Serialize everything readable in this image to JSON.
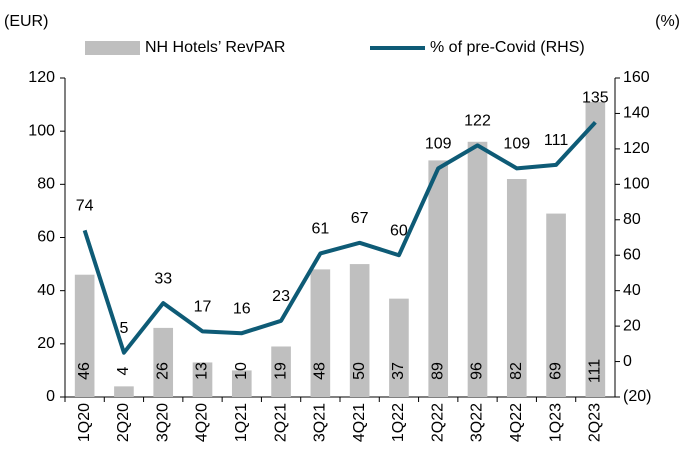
{
  "chart_data": {
    "type": "bar_line",
    "y_label": "(EUR)",
    "y2_label": "(%)",
    "categories": [
      "1Q20",
      "2Q20",
      "3Q20",
      "4Q20",
      "1Q21",
      "2Q21",
      "3Q21",
      "4Q21",
      "1Q22",
      "2Q22",
      "3Q22",
      "4Q22",
      "1Q23",
      "2Q23"
    ],
    "series": [
      {
        "name": "NH Hotels’ RevPAR",
        "type": "bar",
        "color": "#bfbfbf",
        "values": [
          46,
          4,
          26,
          13,
          10,
          19,
          48,
          50,
          37,
          89,
          96,
          82,
          69,
          111
        ]
      },
      {
        "name": "% of pre-Covid (RHS)",
        "type": "line",
        "color": "#0e5b76",
        "axis": "y2",
        "values": [
          74,
          5,
          33,
          17,
          16,
          23,
          61,
          67,
          60,
          109,
          122,
          109,
          111,
          135
        ]
      }
    ],
    "ylim": [
      0,
      120
    ],
    "yticks": [
      0,
      20,
      40,
      60,
      80,
      100,
      120
    ],
    "y2lim": [
      -20,
      160
    ],
    "y2ticks": [
      {
        "value": -20,
        "label": "(20)"
      },
      0,
      20,
      40,
      60,
      80,
      100,
      120,
      140,
      160
    ],
    "legend": "top"
  }
}
